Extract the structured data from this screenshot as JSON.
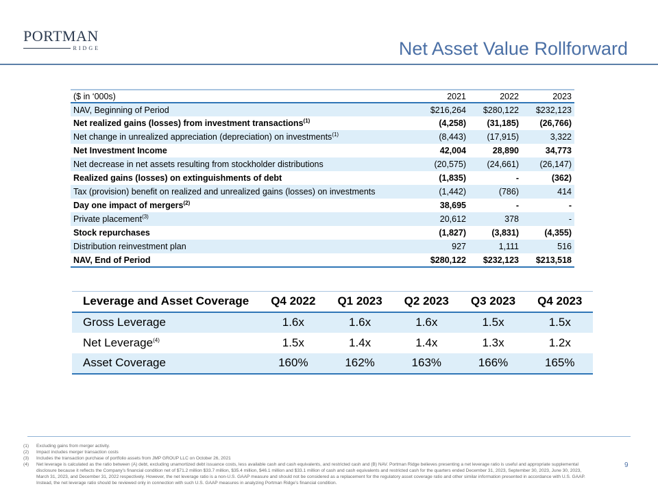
{
  "logo": {
    "name": "PORTMAN",
    "sub": "RIDGE"
  },
  "title": "Net Asset Value Rollforward",
  "nav_table": {
    "headers": [
      "($ in ‘000s)",
      "2021",
      "2022",
      "2023"
    ],
    "rows": [
      {
        "label": "NAV, Beginning of Period",
        "sup": "",
        "values": [
          "$216,264",
          "$280,122",
          "$232,123"
        ]
      },
      {
        "label": "Net realized gains (losses) from investment transactions",
        "sup": "(1)",
        "values": [
          "(4,258)",
          "(31,185)",
          "(26,766)"
        ]
      },
      {
        "label": "Net change in unrealized appreciation (depreciation) on investments",
        "sup": "(1)",
        "values": [
          "(8,443)",
          "(17,915)",
          "3,322"
        ]
      },
      {
        "label": "Net Investment Income",
        "sup": "",
        "values": [
          "42,004",
          "28,890",
          "34,773"
        ]
      },
      {
        "label": "Net decrease in net assets resulting from stockholder distributions",
        "sup": "",
        "values": [
          "(20,575)",
          "(24,661)",
          "(26,147)"
        ]
      },
      {
        "label": "Realized gains (losses) on extinguishments of debt",
        "sup": "",
        "values": [
          "(1,835)",
          "-",
          "(362)"
        ]
      },
      {
        "label": "Tax (provision) benefit on realized and unrealized gains (losses) on investments",
        "sup": "",
        "values": [
          "(1,442)",
          "(786)",
          "414"
        ]
      },
      {
        "label": "Day one impact of mergers",
        "sup": "(2)",
        "values": [
          "38,695",
          "-",
          "-"
        ]
      },
      {
        "label": "Private placement",
        "sup": "(3)",
        "values": [
          "20,612",
          "378",
          "-"
        ]
      },
      {
        "label": "Stock repurchases",
        "sup": "",
        "values": [
          "(1,827)",
          "(3,831)",
          "(4,355)"
        ]
      },
      {
        "label": "Distribution reinvestment plan",
        "sup": "",
        "values": [
          "927",
          "1,111",
          "516"
        ]
      },
      {
        "label": "NAV, End of Period",
        "sup": "",
        "values": [
          "$280,122",
          "$232,123",
          "$213,518"
        ]
      }
    ]
  },
  "leverage_table": {
    "headers": [
      "Leverage and Asset Coverage",
      "Q4 2022",
      "Q1 2023",
      "Q2 2023",
      "Q3 2023",
      "Q4 2023"
    ],
    "rows": [
      {
        "label": "Gross Leverage",
        "sup": "",
        "values": [
          "1.6x",
          "1.6x",
          "1.6x",
          "1.5x",
          "1.5x"
        ]
      },
      {
        "label": "Net Leverage",
        "sup": "(4)",
        "values": [
          "1.5x",
          "1.4x",
          "1.4x",
          "1.3x",
          "1.2x"
        ]
      },
      {
        "label": "Asset Coverage",
        "sup": "",
        "values": [
          "160%",
          "162%",
          "163%",
          "166%",
          "165%"
        ]
      }
    ]
  },
  "footnotes": [
    {
      "key": "(1)",
      "text": "Excluding gains from merger activity."
    },
    {
      "key": "(2)",
      "text": "Impact includes merger transaction costs"
    },
    {
      "key": "(3)",
      "text": "Includes the transaction purchase of portfolio assets from JMP GROUP LLC on October 26, 2021"
    },
    {
      "key": "(4)",
      "text": "Net leverage is calculated as the ratio between (A) debt, excluding unamortized debt issuance costs, less available cash and cash equivalents, and restricted cash and (B) NAV. Portman Ridge believes presenting a net leverage ratio is useful and appropriate supplemental disclosure because it reflects the Company’s financial condition net of $71.2 million $33.7 million, $35.4 million, $46.1 million and $33.1 million of cash and cash equivalents and restricted cash for the quarters ended December 31, 2023, September 30, 2023, June 30, 2023, March 31, 2023, and December 31, 2022 respectively. However, the net leverage ratio is a non-U.S. GAAP measure and should not be considered as a replacement for the regulatory asset coverage ratio and other similar information presented in accordance with U.S. GAAP. Instead, the net leverage ratio should be reviewed only in connection with such U.S. GAAP measures in analyzing Portman Ridge’s financial condition."
    }
  ],
  "page_number": "9",
  "colors": {
    "accent": "#2e75b6",
    "shade": "#ddeef9",
    "title": "#4a6fa5"
  }
}
